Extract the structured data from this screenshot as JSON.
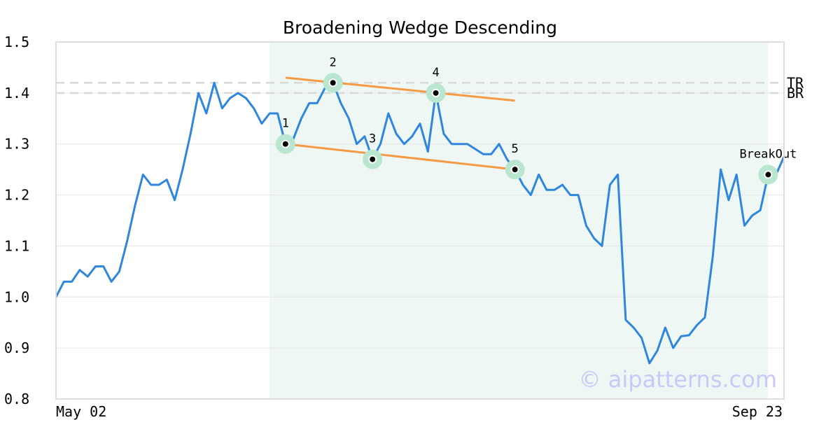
{
  "chart_data": {
    "type": "line",
    "title": "Broadening Wedge Descending",
    "xlabel": "",
    "ylabel": "",
    "ylim": [
      0.8,
      1.5
    ],
    "yticks": [
      "0.8",
      "0.9",
      "1.0",
      "1.1",
      "1.2",
      "1.3",
      "1.4",
      "1.5"
    ],
    "xtick_labels": [
      "May 02",
      "Sep 23"
    ],
    "grid": true,
    "series": [
      {
        "values": [
          1.0,
          1.03,
          1.03,
          1.053,
          1.04,
          1.06,
          1.06,
          1.03,
          1.05,
          1.11,
          1.18,
          1.24,
          1.22,
          1.22,
          1.23,
          1.19,
          1.25,
          1.32,
          1.4,
          1.36,
          1.42,
          1.37,
          1.39,
          1.4,
          1.39,
          1.37,
          1.34,
          1.36,
          1.36,
          1.3,
          1.31,
          1.35,
          1.38,
          1.38,
          1.41,
          1.42,
          1.38,
          1.35,
          1.3,
          1.315,
          1.27,
          1.3,
          1.36,
          1.32,
          1.3,
          1.315,
          1.34,
          1.285,
          1.4,
          1.32,
          1.3,
          1.3,
          1.3,
          1.29,
          1.28,
          1.28,
          1.3,
          1.27,
          1.25,
          1.22,
          1.2,
          1.24,
          1.21,
          1.21,
          1.22,
          1.2,
          1.2,
          1.14,
          1.115,
          1.1,
          1.22,
          1.24,
          0.955,
          0.94,
          0.92,
          0.87,
          0.895,
          0.94,
          0.9,
          0.923,
          0.925,
          0.945,
          0.96,
          1.08,
          1.25,
          1.19,
          1.24,
          1.14,
          1.16,
          1.17,
          1.24,
          1.24,
          1.275
        ]
      }
    ],
    "pattern_points": [
      {
        "label": "1",
        "index": 29,
        "value": 1.3
      },
      {
        "label": "2",
        "index": 35,
        "value": 1.42
      },
      {
        "label": "3",
        "index": 40,
        "value": 1.27
      },
      {
        "label": "4",
        "index": 48,
        "value": 1.4
      },
      {
        "label": "5",
        "index": 58,
        "value": 1.25
      },
      {
        "label": "BreakOut",
        "index": 90,
        "value": 1.24
      }
    ],
    "trendlines": [
      {
        "name": "upper",
        "x0": 29,
        "y0": 1.43,
        "x1": 58,
        "y1": 1.385
      },
      {
        "name": "lower",
        "x0": 29,
        "y0": 1.3,
        "x1": 58,
        "y1": 1.25
      }
    ],
    "reference_lines": [
      {
        "label": "TR",
        "value": 1.42
      },
      {
        "label": "BR",
        "value": 1.4
      }
    ],
    "highlight_range": [
      27,
      90
    ],
    "colors": {
      "line": "#2e86de",
      "trend": "#f59a45",
      "marker_halo": "#b8e6cf",
      "highlight": "#eef7f3",
      "grid": "#e6e6e6",
      "refline": "#d9d9d9"
    },
    "watermark": "© aipatterns.com"
  }
}
